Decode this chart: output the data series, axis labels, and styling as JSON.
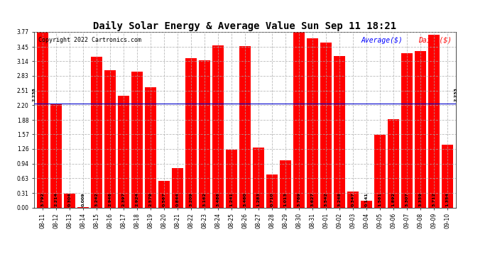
{
  "title": "Daily Solar Energy & Average Value Sun Sep 11 18:21",
  "copyright": "Copyright 2022 Cartronics.com",
  "legend_avg": "Average($)",
  "legend_daily": "Daily($)",
  "average_value": 2.233,
  "categories": [
    "08-11",
    "08-12",
    "08-13",
    "08-14",
    "08-15",
    "08-16",
    "08-17",
    "08-18",
    "08-19",
    "08-20",
    "08-21",
    "08-22",
    "08-23",
    "08-24",
    "08-25",
    "08-26",
    "08-27",
    "08-28",
    "08-29",
    "08-30",
    "08-31",
    "09-01",
    "09-02",
    "09-03",
    "09-04",
    "09-05",
    "09-06",
    "09-07",
    "09-08",
    "09-09",
    "09-10"
  ],
  "values": [
    3.792,
    2.214,
    0.304,
    0.009,
    3.242,
    2.946,
    2.397,
    2.924,
    2.579,
    0.567,
    0.844,
    3.209,
    3.162,
    3.486,
    1.241,
    3.46,
    1.283,
    0.71,
    1.013,
    3.769,
    3.627,
    3.542,
    3.248,
    0.347,
    0.141,
    1.561,
    1.892,
    3.307,
    3.359,
    3.712,
    1.354
  ],
  "bar_color": "#ff0000",
  "avg_line_color": "#0000cd",
  "background_color": "#ffffff",
  "grid_color": "#aaaaaa",
  "ylim": [
    0.0,
    3.77
  ],
  "yticks": [
    0.0,
    0.31,
    0.63,
    0.94,
    1.26,
    1.57,
    1.88,
    2.2,
    2.51,
    2.83,
    3.14,
    3.45,
    3.77
  ],
  "avg_label": "2.233",
  "bar_value_fontsize": 4.5,
  "title_fontsize": 10,
  "copyright_fontsize": 6,
  "legend_fontsize": 7,
  "tick_fontsize": 5.5
}
